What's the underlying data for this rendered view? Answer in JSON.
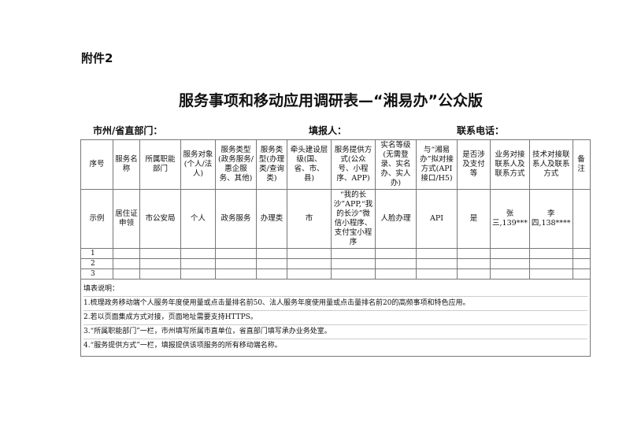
{
  "attachment": "附件2",
  "title": "服务事项和移动应用调研表—“湘易办”公众版",
  "labels": {
    "unit": "市州/省直部门：",
    "filler": "填报人：",
    "phone": "联系电话："
  },
  "headers": [
    "序号",
    "服务名称",
    "所属职能部门",
    "服务对象(个人/法人)",
    "服务类型(政务服务/惠企服务、其他)",
    "服务类型(办理类/查询类)",
    "牵头建设层级(国、省、市、县)",
    "服务提供方式(公众号、小程序、APP)",
    "实名等级(无需登录、实名办、实人办)",
    "与“湘易办”拟对接方式(API接口/H5)",
    "是否涉及支付等",
    "业务对接联系人及联系方式",
    "技术对接联系人及联系方式",
    "备注"
  ],
  "example": [
    "示例",
    "居住证申领",
    "市公安局",
    "个人",
    "政务服务",
    "办理类",
    "市",
    "“我的长沙”APP,“我的长沙”微信小程序、支付宝小程序",
    "人脸办理",
    "API",
    "是",
    "张三,139***",
    "李四,138****",
    ""
  ],
  "rows": [
    "1",
    "2",
    "3"
  ],
  "notes": {
    "heading": "填表说明：",
    "items": [
      "1.梳理政务移动端个人服务年度使用量或点击量排名前50、法人服务年度使用量或点击量排名前20的高频事项和特色应用。",
      "2.若以页面集成方式对接，页面地址需要支持HTTPS。",
      "3.“所属职能部门”一栏，市州填写所属市直单位，省直部门填写承办业务处室。",
      "4.“服务提供方式”一栏，填报提供该项服务的所有移动端名称。"
    ]
  }
}
